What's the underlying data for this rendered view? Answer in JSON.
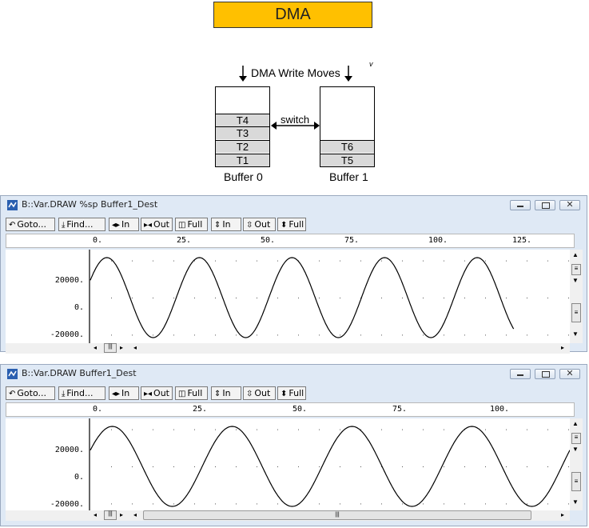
{
  "header": {
    "title": "DMA"
  },
  "diagram": {
    "write_label": "DMA Write Moves",
    "switch_label": "switch",
    "corner_mark": "v",
    "buffer0": {
      "label": "Buffer 0",
      "cells": [
        "T4",
        "T3",
        "T2",
        "T1"
      ]
    },
    "buffer1": {
      "label": "Buffer 1",
      "cells": [
        "T6",
        "T5"
      ]
    }
  },
  "toolbar": {
    "goto": "Goto...",
    "find": "Find...",
    "in1": "In",
    "out1": "Out",
    "full1": "Full",
    "in2": "In",
    "out2": "Out",
    "full2": "Full"
  },
  "windows": [
    {
      "title": "B::Var.DRAW %sp Buffer1_Dest",
      "ruler_ticks": [
        "0.",
        "25.",
        "50.",
        "75.",
        "100.",
        "125."
      ],
      "y_labels": [
        "20000.",
        "0.",
        "-20000."
      ],
      "chart_data": {
        "type": "line",
        "x_start": 0,
        "x_end": 128,
        "period": 28,
        "amplitude": 22000,
        "ylim": [
          -22000,
          22000
        ],
        "x_range": [
          0,
          145
        ]
      }
    },
    {
      "title": "B::Var.DRAW Buffer1_Dest",
      "ruler_ticks": [
        "0.",
        "25.",
        "50.",
        "75.",
        "100."
      ],
      "y_labels": [
        "20000.",
        "0.",
        "-20000."
      ],
      "chart_data": {
        "type": "line",
        "x_start": 0,
        "x_end": 120,
        "period": 30,
        "amplitude": 22000,
        "ylim": [
          -22000,
          22000
        ],
        "x_range": [
          0,
          120
        ]
      }
    }
  ]
}
